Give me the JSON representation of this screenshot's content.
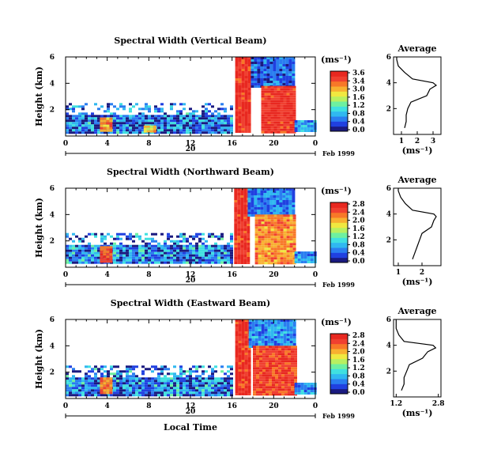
{
  "figure": {
    "xlabel": "Local Time",
    "date_label": "Feb 1999",
    "day_label": "20",
    "avg_title": "Average",
    "colorbar_unit": "(ms⁻¹)",
    "avg_xlabel": "(ms⁻¹)"
  },
  "colormap": [
    "#1a1a80",
    "#2040e0",
    "#2a7ef0",
    "#30b8f0",
    "#40e0e0",
    "#6ef0a0",
    "#b8f060",
    "#f0e840",
    "#f8b030",
    "#f87828",
    "#f04030",
    "#e82820"
  ],
  "chart_data": [
    {
      "type": "heatmap",
      "title": "Spectral Width (Vertical Beam)",
      "ylabel": "Height (km)",
      "x_ticks": [
        "0",
        "4",
        "8",
        "12",
        "16",
        "20",
        "0"
      ],
      "y_ticks": [
        "6",
        "4",
        "2"
      ],
      "xlim": [
        0,
        24
      ],
      "ylim": [
        0,
        6
      ],
      "colorbar": {
        "ticks": [
          "3.6",
          "3.4",
          "3.0",
          "1.6",
          "1.2",
          "0.8",
          "0.4",
          "0.0"
        ],
        "range": [
          0,
          3.6
        ]
      },
      "regions": [
        {
          "x": [
            0,
            16
          ],
          "y": [
            0.3,
            2.5
          ],
          "value": 0.6
        },
        {
          "x": [
            3.3,
            4.3
          ],
          "y": [
            0.4,
            1.4
          ],
          "value": 2.8
        },
        {
          "x": [
            7.5,
            8.5
          ],
          "y": [
            0.3,
            0.8
          ],
          "value": 2.4
        },
        {
          "x": [
            16.3,
            17.8
          ],
          "y": [
            0.3,
            6.0
          ],
          "value": 3.5
        },
        {
          "x": [
            17.8,
            22.0
          ],
          "y": [
            3.8,
            6.0
          ],
          "value": 0.5
        },
        {
          "x": [
            18.8,
            22.0
          ],
          "y": [
            0.3,
            3.8
          ],
          "value": 3.5
        },
        {
          "x": [
            22.0,
            24.0
          ],
          "y": [
            0.3,
            1.2
          ],
          "value": 0.8
        }
      ],
      "average": {
        "xlim": [
          0.5,
          3.5
        ],
        "x_ticks": [
          "1",
          "2",
          "3"
        ],
        "y_ticks": [
          "6",
          "4",
          "2"
        ],
        "height_km": [
          0.5,
          1.0,
          1.5,
          2.0,
          2.5,
          3.0,
          3.5,
          3.8,
          4.0,
          4.3,
          4.8,
          5.3,
          5.8,
          6.0
        ],
        "width": [
          1.2,
          1.3,
          1.3,
          1.4,
          1.6,
          2.6,
          2.8,
          3.2,
          3.0,
          1.7,
          1.2,
          0.8,
          0.7,
          0.7
        ]
      }
    },
    {
      "type": "heatmap",
      "title": "Spectral Width (Northward Beam)",
      "ylabel": "Height (km)",
      "x_ticks": [
        "0",
        "4",
        "8",
        "12",
        "16",
        "20",
        "0"
      ],
      "y_ticks": [
        "6",
        "4",
        "2"
      ],
      "xlim": [
        0,
        24
      ],
      "ylim": [
        0,
        6
      ],
      "colorbar": {
        "ticks": [
          "2.8",
          "2.4",
          "2.0",
          "1.6",
          "1.2",
          "0.8",
          "0.4",
          "0.0"
        ],
        "range": [
          0,
          2.8
        ]
      },
      "regions": [
        {
          "x": [
            0,
            16
          ],
          "y": [
            0.3,
            2.6
          ],
          "value": 0.5
        },
        {
          "x": [
            3.3,
            4.3
          ],
          "y": [
            0.5,
            1.6
          ],
          "value": 2.5
        },
        {
          "x": [
            16.2,
            17.5
          ],
          "y": [
            0.3,
            6.0
          ],
          "value": 2.7
        },
        {
          "x": [
            17.5,
            22.0
          ],
          "y": [
            4.0,
            6.0
          ],
          "value": 0.5
        },
        {
          "x": [
            18.2,
            22.0
          ],
          "y": [
            0.3,
            4.0
          ],
          "value": 2.2
        },
        {
          "x": [
            22.0,
            24.0
          ],
          "y": [
            0.3,
            1.2
          ],
          "value": 0.6
        }
      ],
      "average": {
        "xlim": [
          0.8,
          2.8
        ],
        "x_ticks": [
          "1",
          "2"
        ],
        "y_ticks": [
          "6",
          "4",
          "2"
        ],
        "height_km": [
          0.5,
          1.0,
          1.5,
          2.0,
          2.5,
          3.0,
          3.5,
          3.8,
          4.0,
          4.3,
          4.8,
          5.3,
          5.8,
          6.0
        ],
        "width": [
          1.6,
          1.7,
          1.8,
          1.9,
          2.0,
          2.4,
          2.5,
          2.6,
          2.5,
          1.6,
          1.3,
          1.1,
          1.0,
          1.0
        ]
      }
    },
    {
      "type": "heatmap",
      "title": "Spectral Width (Eastward Beam)",
      "ylabel": "Height (km)",
      "x_ticks": [
        "0",
        "4",
        "8",
        "12",
        "16",
        "20",
        "0"
      ],
      "y_ticks": [
        "6",
        "4",
        "2"
      ],
      "xlim": [
        0,
        24
      ],
      "ylim": [
        0,
        6
      ],
      "colorbar": {
        "ticks": [
          "2.8",
          "2.4",
          "2.0",
          "1.6",
          "1.2",
          "0.8",
          "0.4",
          "0.0"
        ],
        "range": [
          0,
          2.8
        ]
      },
      "regions": [
        {
          "x": [
            0,
            16
          ],
          "y": [
            0.3,
            2.5
          ],
          "value": 0.5
        },
        {
          "x": [
            3.3,
            4.3
          ],
          "y": [
            0.5,
            1.6
          ],
          "value": 2.3
        },
        {
          "x": [
            16.3,
            17.6
          ],
          "y": [
            0.3,
            6.0
          ],
          "value": 2.7
        },
        {
          "x": [
            17.6,
            22.0
          ],
          "y": [
            4.0,
            6.0
          ],
          "value": 0.6
        },
        {
          "x": [
            18.0,
            22.0
          ],
          "y": [
            0.3,
            4.0
          ],
          "value": 2.6
        },
        {
          "x": [
            22.0,
            24.0
          ],
          "y": [
            0.3,
            1.2
          ],
          "value": 0.6
        }
      ],
      "average": {
        "xlim": [
          1.1,
          2.9
        ],
        "x_ticks": [
          "1.2",
          "2.8"
        ],
        "y_ticks": [
          "6",
          "4",
          "2"
        ],
        "height_km": [
          0.5,
          1.0,
          1.5,
          2.0,
          2.5,
          3.0,
          3.5,
          3.8,
          4.0,
          4.3,
          4.8,
          5.3,
          5.8,
          6.0
        ],
        "width": [
          1.4,
          1.5,
          1.5,
          1.6,
          1.7,
          2.2,
          2.4,
          2.7,
          2.6,
          1.5,
          1.3,
          1.2,
          1.2,
          1.2
        ]
      }
    }
  ]
}
